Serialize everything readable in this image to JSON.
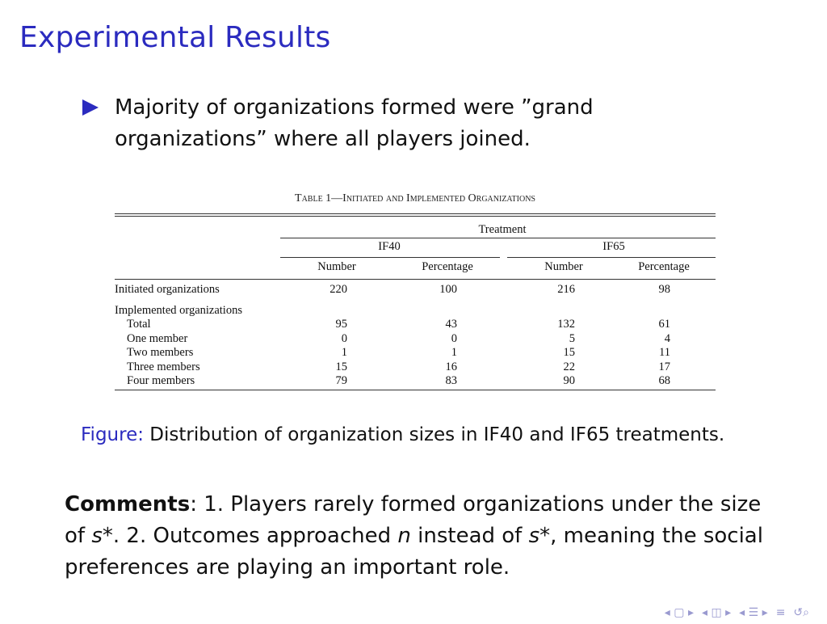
{
  "slide": {
    "title": "Experimental Results",
    "bullet": "Majority of organizations formed were ”grand organizations” where all players joined."
  },
  "table": {
    "caption": "Table 1—Initiated and Implemented Organizations",
    "header_treatment": "Treatment",
    "groups": [
      "IF40",
      "IF65"
    ],
    "subheaders": [
      "Number",
      "Percentage",
      "Number",
      "Percentage"
    ],
    "rows": [
      {
        "label": "Initiated organizations",
        "values": [
          "220",
          "100",
          "216",
          "98"
        ]
      },
      {
        "label": "Implemented organizations",
        "values": [
          "",
          "",
          "",
          ""
        ]
      },
      {
        "label": "Total",
        "values": [
          "95",
          "43",
          "132",
          "61"
        ]
      },
      {
        "label": "One member",
        "values": [
          "0",
          "0",
          "5",
          "4"
        ]
      },
      {
        "label": "Two members",
        "values": [
          "1",
          "1",
          "15",
          "11"
        ]
      },
      {
        "label": "Three members",
        "values": [
          "15",
          "16",
          "22",
          "17"
        ]
      },
      {
        "label": "Four members",
        "values": [
          "79",
          "83",
          "90",
          "68"
        ]
      }
    ]
  },
  "figure": {
    "label": "Figure:",
    "text": "Distribution of organization sizes in IF40 and IF65 treatments."
  },
  "comments": {
    "label": "Comments",
    "before_s1": ": 1. Players rarely formed organizations under the size of ",
    "s_star": "s*",
    "mid": ". 2. Outcomes approached ",
    "n": "n",
    "instead": " instead of ",
    "s_star2": "s*",
    "end": ", meaning the social preferences are playing an important role."
  },
  "navigation": {
    "icons": [
      "nav-frame-icon",
      "nav-subsection-icon",
      "nav-section-icon",
      "nav-align-icon",
      "nav-search-icon"
    ]
  }
}
